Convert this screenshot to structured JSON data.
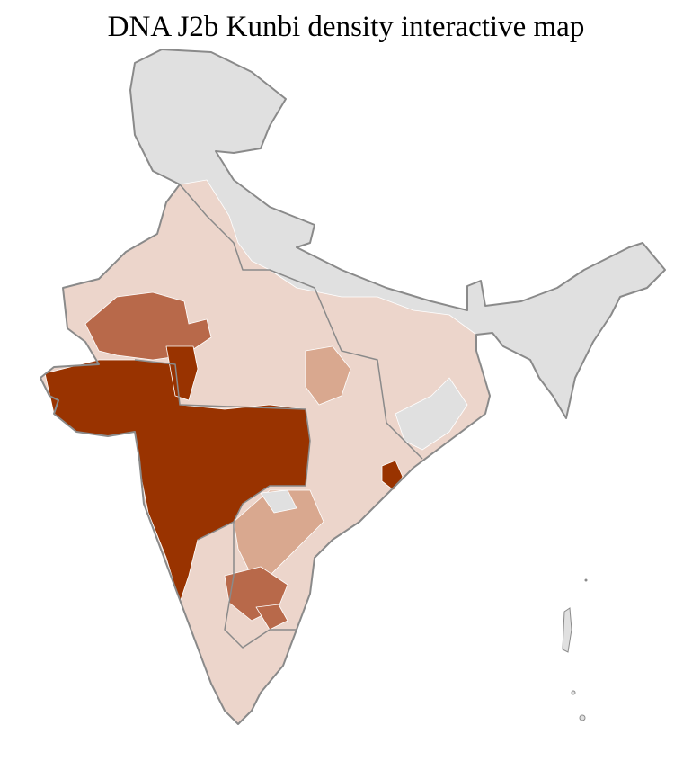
{
  "title": "DNA J2b Kunbi density interactive map",
  "map": {
    "region": "India districts",
    "colors": {
      "no_data": "#e0e0e0",
      "low": "#ecd5cb",
      "medium_low": "#d9a88f",
      "medium": "#b8694a",
      "high": "#993300",
      "border": "#8a8a8a"
    }
  }
}
